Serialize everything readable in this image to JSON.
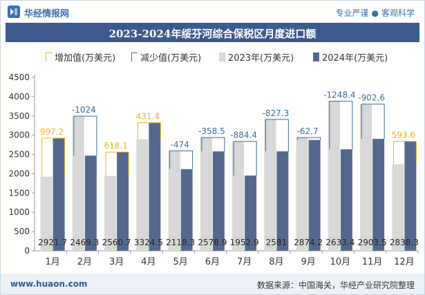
{
  "header": {
    "brand": "华经情报网",
    "tagline_left": "专业严谨",
    "tagline_right": "客观科学",
    "logo_icon": "huajing-logo-icon"
  },
  "footer": {
    "url": "www.huaon.com",
    "source": "数据来源：中国海关，华经产业研究院整理"
  },
  "legend": {
    "increase": "增加值(万美元)",
    "decrease": "减少值(万美元)",
    "y2023": "2023年(万美元)",
    "y2024": "2024年(万美元)"
  },
  "colors": {
    "title_bg": "#3d5a8e",
    "bar_2023": "#d8d8d8",
    "bar_2024": "#54698f",
    "increase": "#e8b420",
    "decrease": "#3a6a9c"
  },
  "chart_data": {
    "type": "bar",
    "title": "2023-2024年绥芬河综合保税区月度进口额",
    "categories": [
      "1月",
      "2月",
      "3月",
      "4月",
      "5月",
      "6月",
      "7月",
      "8月",
      "9月",
      "10月",
      "11月",
      "12月"
    ],
    "series": [
      {
        "name": "2023年(万美元)",
        "values": [
          1924.5,
          3493.3,
          1942.6,
          2893.1,
          2592.3,
          2937.4,
          2837.3,
          3408.3,
          2936.9,
          3881.8,
          3806.1,
          2244.7
        ]
      },
      {
        "name": "2024年(万美元)",
        "values": [
          2921.7,
          2469.3,
          2560.7,
          3324.5,
          2118.3,
          2578.9,
          1952.9,
          2581,
          2874.2,
          2633.4,
          2903.5,
          2838.3
        ]
      }
    ],
    "changes": [
      997.2,
      -1024,
      618.1,
      431.4,
      -474,
      -358.5,
      -884.4,
      -827.3,
      -62.7,
      -1248.4,
      -902.6,
      593.6
    ],
    "change_labels": [
      "997.2",
      "-1024",
      "618.1",
      "431.4",
      "-474",
      "-358.5",
      "-884.4",
      "-827.3",
      "-62.7",
      "-1248.4",
      "-902.6",
      "593.6"
    ],
    "value_labels_2024": [
      "2921.7",
      "2469.3",
      "2560.7",
      "3324.5",
      "2118.3",
      "2578.9",
      "1952.9",
      "2581",
      "2874.2",
      "2633.4",
      "2903.5",
      "2838.3"
    ],
    "ylim": [
      0,
      4500
    ],
    "yticks": [
      0,
      500,
      1000,
      1500,
      2000,
      2500,
      3000,
      3500,
      4000,
      4500
    ],
    "xlabel": "",
    "ylabel": "",
    "grid": false,
    "legend_position": "top"
  }
}
